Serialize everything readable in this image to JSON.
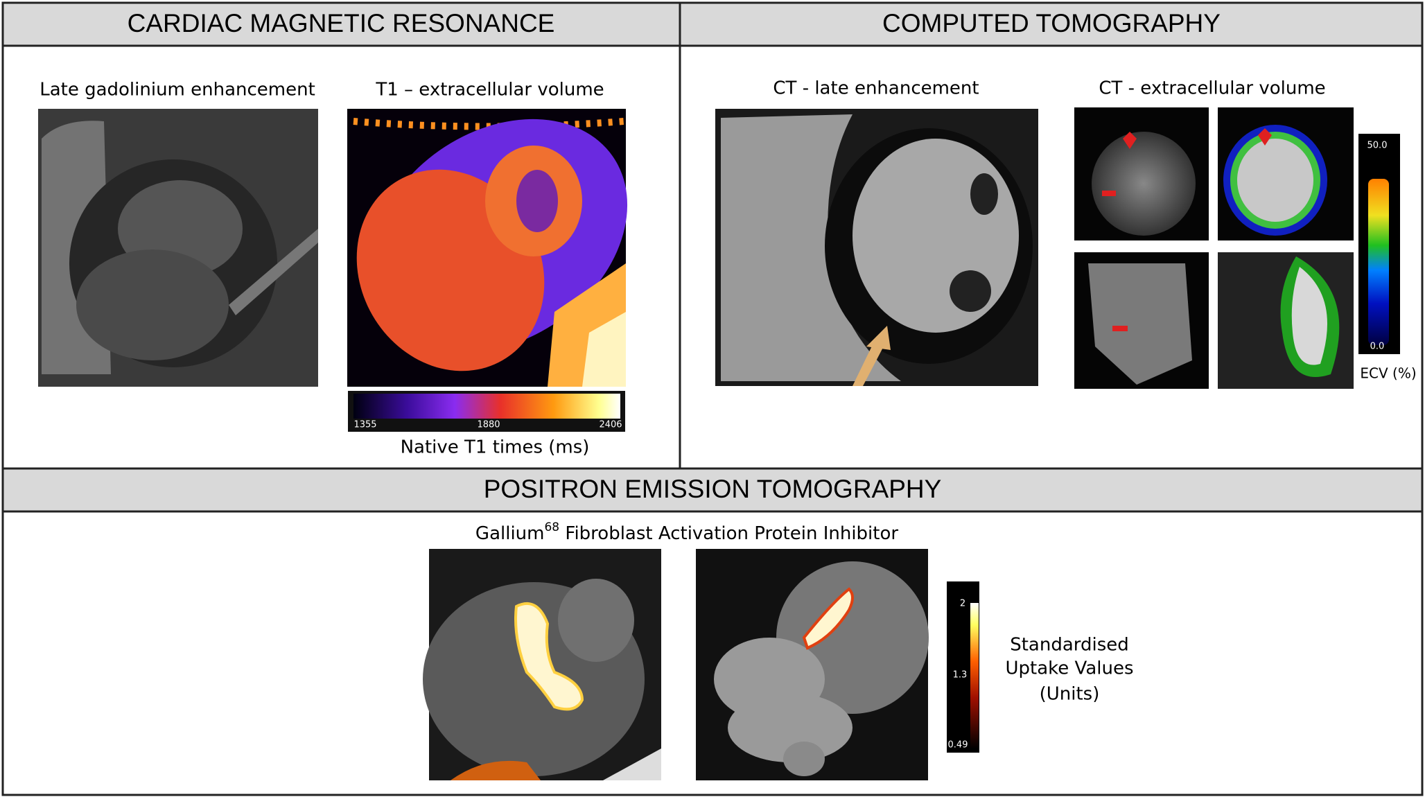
{
  "sections": [
    {
      "title": "CARDIAC MAGNETIC RESONANCE",
      "panels": [
        {
          "label": "Late gadolinium enhancement"
        },
        {
          "label": "T1 – extracellular volume",
          "colorbar": {
            "ticks": [
              "1355",
              "1880",
              "2406"
            ],
            "caption": "Native T1 times (ms)"
          }
        }
      ]
    },
    {
      "title": "COMPUTED TOMOGRAPHY",
      "panels": [
        {
          "label": "CT - late enhancement"
        },
        {
          "label": "CT - extracellular volume",
          "colorbar": {
            "ticks": [
              "50.0",
              "0.0"
            ],
            "caption": "ECV (%)"
          }
        }
      ]
    },
    {
      "title": "POSITRON EMISSION TOMOGRAPHY",
      "subtitle": {
        "base": "Gallium",
        "superscript": "68",
        "rest": " Fibroblast Activation Protein Inhibitor"
      },
      "colorbar": {
        "ticks": [
          "2",
          "1.3",
          "0.49"
        ],
        "caption": [
          "Standardised",
          "Uptake Values",
          "(Units)"
        ]
      }
    }
  ]
}
